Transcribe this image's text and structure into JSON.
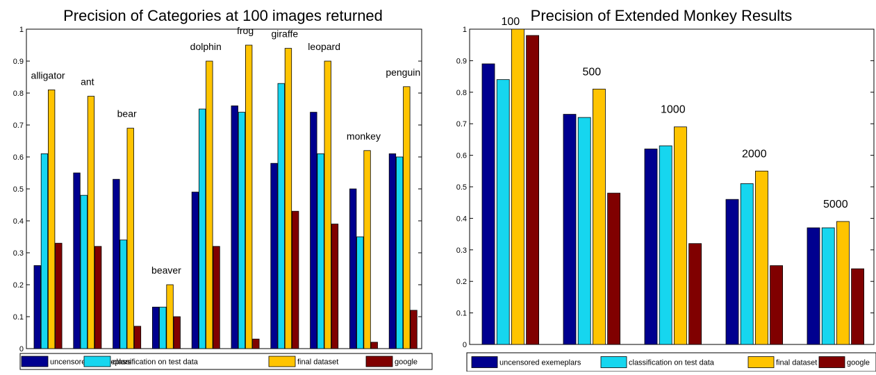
{
  "colors": {
    "uncensored": "#00008f",
    "classification": "#16d6ef",
    "final": "#ffc400",
    "google": "#800000"
  },
  "legend_labels": [
    "uncensored exemeplars",
    "classification on test data",
    "final dataset",
    "google"
  ],
  "chart_data": [
    {
      "type": "bar",
      "title": "Precision of Categories at 100 images returned",
      "xlabel": "",
      "ylabel": "",
      "ylim": [
        0,
        1
      ],
      "yticks": [
        "0",
        "0.1",
        "0.2",
        "0.3",
        "0.4",
        "0.5",
        "0.6",
        "0.7",
        "0.8",
        "0.9",
        "1"
      ],
      "categories": [
        "alligator",
        "ant",
        "bear",
        "beaver",
        "dolphin",
        "frog",
        "giraffe",
        "leopard",
        "monkey",
        "penguin"
      ],
      "series": [
        {
          "name": "uncensored exemeplars",
          "values": [
            0.26,
            0.55,
            0.53,
            0.13,
            0.49,
            0.76,
            0.58,
            0.74,
            0.5,
            0.61
          ]
        },
        {
          "name": "classification on test data",
          "values": [
            0.61,
            0.48,
            0.34,
            0.13,
            0.75,
            0.74,
            0.83,
            0.61,
            0.35,
            0.6
          ]
        },
        {
          "name": "final dataset",
          "values": [
            0.81,
            0.79,
            0.69,
            0.2,
            0.9,
            0.95,
            0.94,
            0.9,
            0.62,
            0.82
          ]
        },
        {
          "name": "google",
          "values": [
            0.33,
            0.32,
            0.07,
            0.1,
            0.32,
            0.03,
            0.43,
            0.39,
            0.02,
            0.12
          ]
        }
      ],
      "legend": "bottom"
    },
    {
      "type": "bar",
      "title": "Precision of Extended Monkey Results",
      "xlabel": "",
      "ylabel": "",
      "ylim": [
        0,
        1
      ],
      "yticks": [
        "0",
        "0.1",
        "0.2",
        "0.3",
        "0.4",
        "0.5",
        "0.6",
        "0.7",
        "0.8",
        "0.9",
        "1"
      ],
      "categories": [
        "100",
        "500",
        "1000",
        "2000",
        "5000"
      ],
      "series": [
        {
          "name": "uncensored exemeplars",
          "values": [
            0.89,
            0.73,
            0.62,
            0.46,
            0.37
          ]
        },
        {
          "name": "classification on test data",
          "values": [
            0.84,
            0.72,
            0.63,
            0.51,
            0.37
          ]
        },
        {
          "name": "final dataset",
          "values": [
            1.0,
            0.81,
            0.69,
            0.55,
            0.39
          ]
        },
        {
          "name": "google",
          "values": [
            0.98,
            0.48,
            0.32,
            0.25,
            0.24
          ]
        }
      ],
      "legend": "bottom"
    }
  ]
}
